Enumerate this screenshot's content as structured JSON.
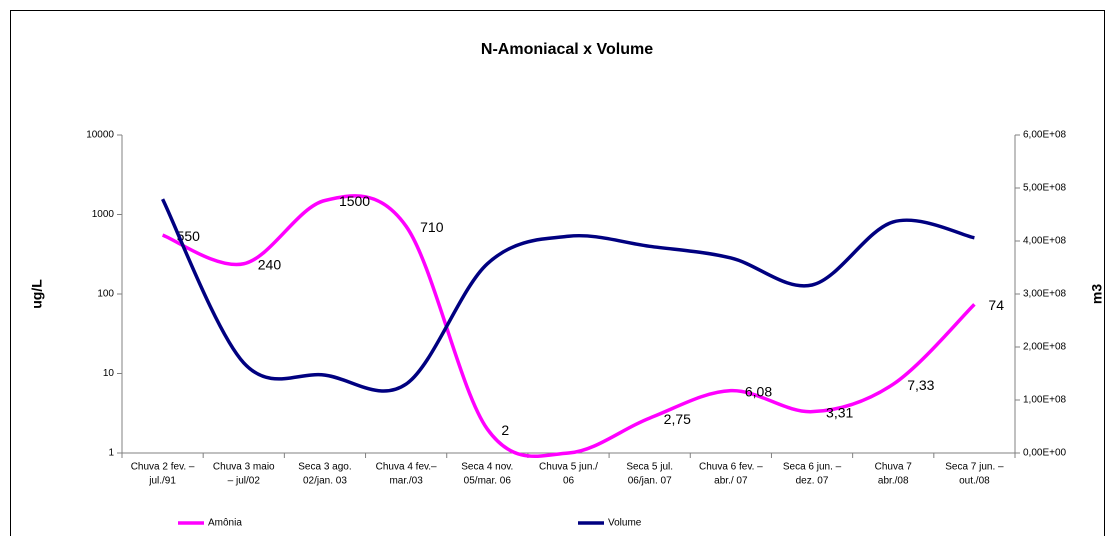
{
  "chart_data": {
    "type": "line",
    "title": "N-Amoniacal x Volume",
    "y_label": "ug/L",
    "y2_label": "m3",
    "categories": [
      [
        "Chuva 2  fev. –",
        "jul./91"
      ],
      [
        "Chuva 3 maio",
        "– jul/02"
      ],
      [
        "Seca 3 ago.",
        "02/jan. 03"
      ],
      [
        "Chuva 4 fev.–",
        "mar./03"
      ],
      [
        "Seca 4 nov.",
        "05/mar. 06"
      ],
      [
        "Chuva 5 jun./",
        "06"
      ],
      [
        "Seca 5 jul.",
        "06/jan. 07"
      ],
      [
        "Chuva 6  fev. –",
        "abr./ 07"
      ],
      [
        "Seca 6 jun. –",
        "dez. 07"
      ],
      [
        "Chuva 7",
        "abr./08"
      ],
      [
        "Seca 7 jun. –",
        "out./08"
      ]
    ],
    "series": [
      {
        "name": "Amônia",
        "color": "#ff00ff",
        "axis": "y",
        "values": [
          550,
          240,
          1500,
          710,
          2,
          1,
          2.75,
          6.08,
          3.31,
          7.33,
          74
        ],
        "value_labels": [
          "550",
          "240",
          "1500",
          "710",
          "2",
          null,
          "2,75",
          "6,08",
          "3,31",
          "7,33",
          "74"
        ]
      },
      {
        "name": "Volume",
        "color": "#000080",
        "axis": "y2",
        "values": [
          479000000,
          170000000,
          147000000,
          130000000,
          357000000,
          409000000,
          390000000,
          368000000,
          317000000,
          436000000,
          406000000
        ]
      }
    ],
    "ylog": true,
    "ylim": [
      1,
      10000
    ],
    "yticks": [
      1,
      10,
      100,
      1000,
      10000
    ],
    "y2lim": [
      0,
      600000000
    ],
    "y2ticks": [
      {
        "value": 0,
        "label": "0,00E+00"
      },
      {
        "value": 100000000,
        "label": "1,00E+08"
      },
      {
        "value": 200000000,
        "label": "2,00E+08"
      },
      {
        "value": 300000000,
        "label": "3,00E+08"
      },
      {
        "value": 400000000,
        "label": "4,00E+08"
      },
      {
        "value": 500000000,
        "label": "5,00E+08"
      },
      {
        "value": 600000000,
        "label": "6,00E+08"
      }
    ],
    "grid": false,
    "legend": "bottom"
  }
}
